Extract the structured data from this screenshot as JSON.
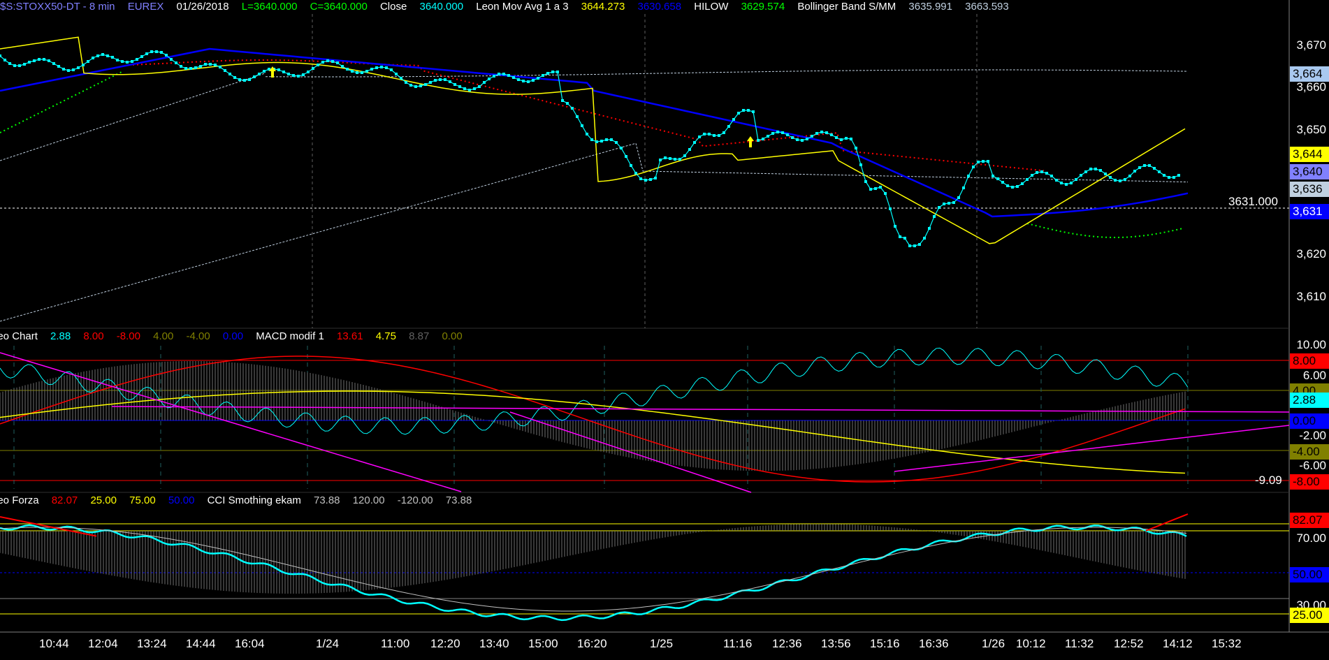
{
  "header1": {
    "symbol": "$S:STOXX50-DT - 8 min",
    "exchange": "EUREX",
    "date": "01/26/2018",
    "low": "L=3640.000",
    "close_c": "C=3640.000",
    "close_label": "Close",
    "close_value": "3640.000",
    "ma_label": "Leon Mov Avg 1 a 3",
    "ma_value": "3644.273",
    "ma_value2": "3630.658",
    "hilow_label": "HILOW",
    "hilow_value": "3629.574",
    "bb_label": "Bollinger Band S/MM",
    "bb_v1": "3635.991",
    "bb_v2": "3663.593"
  },
  "header2": {
    "name": "Leo Chart",
    "v1": "2.88",
    "v2": "8.00",
    "v3": "-8.00",
    "v4": "4.00",
    "v5": "-4.00",
    "v6": "0.00",
    "macd_label": "MACD modif 1",
    "m1": "13.61",
    "m2": "4.75",
    "m3": "8.87",
    "m4": "0.00"
  },
  "header3": {
    "name": "Leo Forza",
    "v1": "82.07",
    "v2": "25.00",
    "v3": "75.00",
    "v4": "50.00",
    "cci_label": "CCI Smothing ekam",
    "c1": "73.88",
    "c2": "120.00",
    "c3": "-120.00",
    "c4": "73.88"
  },
  "price_axis": [
    "3,670",
    "3,660",
    "3,650",
    "3,640",
    "3,630",
    "3,620",
    "3,610"
  ],
  "price_tags": [
    {
      "text": "3,664",
      "color": "#a9c9f0"
    },
    {
      "text": "3,644",
      "color": "#ffff00"
    },
    {
      "text": "3,640",
      "color": "#8080ff"
    },
    {
      "text": "3,636",
      "color": "#c0d0e0"
    },
    {
      "text": "3,631",
      "color": "#0000ff"
    }
  ],
  "horizontal_line_value": "3631.000",
  "macd_axis": [
    "10.00",
    "6.00",
    "-2.00",
    "-6.00"
  ],
  "macd_tags": [
    {
      "text": "8.00",
      "color": "#ff0000"
    },
    {
      "text": "4.00",
      "color": "#808000"
    },
    {
      "text": "2.88",
      "color": "#00ffff"
    },
    {
      "text": "0.00",
      "color": "#0000ff"
    },
    {
      "text": "-4.00",
      "color": "#808000"
    },
    {
      "text": "-8.00",
      "color": "#ff0000"
    }
  ],
  "macd_low_value": "-9.09",
  "forza_axis": [
    "70.00",
    "30.00"
  ],
  "forza_tags": [
    {
      "text": "82.07",
      "color": "#ff0000"
    },
    {
      "text": "50.00",
      "color": "#0000ff"
    },
    {
      "text": "25.00",
      "color": "#ffff00"
    }
  ],
  "time_labels": [
    "10:44",
    "12:04",
    "13:24",
    "14:44",
    "16:04",
    "1/24",
    "11:00",
    "12:20",
    "13:40",
    "15:00",
    "16:20",
    "1/25",
    "11:16",
    "12:36",
    "13:56",
    "15:16",
    "16:36",
    "1/26",
    "10:12",
    "11:32",
    "12:52",
    "14:12",
    "15:32"
  ],
  "colors": {
    "price": "#00ffff",
    "ma_blue": "#0000ff",
    "ma_yellow": "#ffff00",
    "red_dots": "#ff0000",
    "green_dots": "#00ff00",
    "bollinger": "#c0d0e0",
    "trendline": "#ff00ff"
  }
}
